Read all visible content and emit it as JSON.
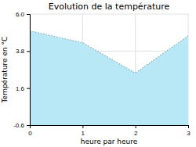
{
  "chart_data": {
    "type": "area",
    "title": "Evolution de la température",
    "xlabel": "heure par heure",
    "ylabel": "Température en °C",
    "x": [
      0,
      1,
      2,
      3
    ],
    "values": [
      5.0,
      4.3,
      2.5,
      4.7
    ],
    "xlim": [
      0,
      3
    ],
    "ylim": [
      -0.6,
      6.0
    ],
    "xticks": [
      0,
      1,
      2,
      3
    ],
    "yticks": [
      -0.6,
      1.6,
      3.8,
      {
        "value": 6.0,
        "label": "6.0"
      }
    ],
    "color": "#B8E8F5",
    "line_style": "dotted",
    "grid": true
  }
}
